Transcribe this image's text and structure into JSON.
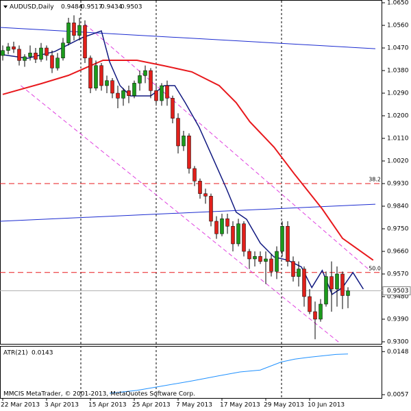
{
  "chart_data": {
    "type": "candlestick",
    "title": "AUDUSD,Daily",
    "up_color": "#1c9a1c",
    "down_color": "#e0201b",
    "ohlc": [
      [
        1.044,
        1.048,
        1.042,
        1.046
      ],
      [
        1.046,
        1.049,
        1.0445,
        1.0475
      ],
      [
        1.0475,
        1.0495,
        1.045,
        1.0465
      ],
      [
        1.0465,
        1.048,
        1.04,
        1.042
      ],
      [
        1.042,
        1.0445,
        1.0395,
        1.0435
      ],
      [
        1.0435,
        1.048,
        1.042,
        1.045
      ],
      [
        1.045,
        1.047,
        1.041,
        1.0425
      ],
      [
        1.0425,
        1.049,
        1.0415,
        1.047
      ],
      [
        1.047,
        1.048,
        1.042,
        1.044
      ],
      [
        1.044,
        1.046,
        1.037,
        1.039
      ],
      [
        1.039,
        1.045,
        1.038,
        1.043
      ],
      [
        1.043,
        1.051,
        1.042,
        1.049
      ],
      [
        1.049,
        1.059,
        1.048,
        1.057
      ],
      [
        1.057,
        1.06,
        1.05,
        1.052
      ],
      [
        1.052,
        1.059,
        1.05,
        1.056
      ],
      [
        1.056,
        1.058,
        1.041,
        1.043
      ],
      [
        1.043,
        1.044,
        1.029,
        1.031
      ],
      [
        1.031,
        1.042,
        1.03,
        1.04
      ],
      [
        1.04,
        1.041,
        1.03,
        1.032
      ],
      [
        1.032,
        1.036,
        1.029,
        1.034
      ],
      [
        1.034,
        1.035,
        1.027,
        1.029
      ],
      [
        1.029,
        1.032,
        1.023,
        1.027
      ],
      [
        1.027,
        1.031,
        1.024,
        1.03
      ],
      [
        1.03,
        1.032,
        1.025,
        1.028
      ],
      [
        1.028,
        1.034,
        1.027,
        1.033
      ],
      [
        1.033,
        1.038,
        1.03,
        1.036
      ],
      [
        1.036,
        1.04,
        1.033,
        1.038
      ],
      [
        1.038,
        1.039,
        1.027,
        1.03
      ],
      [
        1.03,
        1.033,
        1.024,
        1.026
      ],
      [
        1.026,
        1.033,
        1.024,
        1.032
      ],
      [
        1.032,
        1.034,
        1.024,
        1.027
      ],
      [
        1.027,
        1.028,
        1.017,
        1.019
      ],
      [
        1.019,
        1.021,
        1.005,
        1.008
      ],
      [
        1.008,
        1.014,
        1.006,
        1.012
      ],
      [
        1.012,
        1.013,
        0.997,
        0.999
      ],
      [
        0.999,
        1.0,
        0.992,
        0.994
      ],
      [
        0.994,
        0.995,
        0.987,
        0.989
      ],
      [
        0.989,
        0.991,
        0.985,
        0.988
      ],
      [
        0.988,
        0.989,
        0.976,
        0.978
      ],
      [
        0.978,
        0.98,
        0.971,
        0.973
      ],
      [
        0.973,
        0.981,
        0.972,
        0.979
      ],
      [
        0.979,
        0.981,
        0.973,
        0.976
      ],
      [
        0.976,
        0.978,
        0.966,
        0.969
      ],
      [
        0.969,
        0.979,
        0.968,
        0.977
      ],
      [
        0.977,
        0.978,
        0.964,
        0.966
      ],
      [
        0.966,
        0.967,
        0.959,
        0.963
      ],
      [
        0.963,
        0.966,
        0.96,
        0.964
      ],
      [
        0.964,
        0.966,
        0.961,
        0.962
      ],
      [
        0.962,
        0.966,
        0.953,
        0.963
      ],
      [
        0.963,
        0.965,
        0.956,
        0.958
      ],
      [
        0.958,
        0.968,
        0.955,
        0.966
      ],
      [
        0.966,
        0.978,
        0.964,
        0.976
      ],
      [
        0.976,
        0.978,
        0.96,
        0.962
      ],
      [
        0.962,
        0.964,
        0.954,
        0.956
      ],
      [
        0.956,
        0.962,
        0.952,
        0.959
      ],
      [
        0.959,
        0.96,
        0.944,
        0.948
      ],
      [
        0.948,
        0.951,
        0.941,
        0.942
      ],
      [
        0.942,
        0.946,
        0.931,
        0.939
      ],
      [
        0.939,
        0.947,
        0.938,
        0.945
      ],
      [
        0.945,
        0.958,
        0.944,
        0.956
      ],
      [
        0.956,
        0.962,
        0.942,
        0.951
      ],
      [
        0.951,
        0.96,
        0.944,
        0.957
      ],
      [
        0.957,
        0.958,
        0.943,
        0.9484
      ],
      [
        0.9484,
        0.9517,
        0.9434,
        0.9503
      ]
    ],
    "xlim": [
      -0.5,
      69.25
    ],
    "xticks": [
      {
        "value": 0,
        "label": "22 Mar 2013"
      },
      {
        "value": 8,
        "label": "3 Apr 2013"
      },
      {
        "value": 16,
        "label": "15 Apr 2013"
      },
      {
        "value": 24,
        "label": "25 Apr 2013"
      },
      {
        "value": 32,
        "label": "7 May 2013"
      },
      {
        "value": 40,
        "label": "17 May 2013"
      },
      {
        "value": 48,
        "label": "29 May 2013"
      },
      {
        "value": 56,
        "label": "10 Jun 2013"
      }
    ],
    "ylim": [
      0.9289,
      1.0661
    ],
    "yticks": [
      {
        "value": 1.065,
        "label": "1.0650"
      },
      {
        "value": 1.056,
        "label": "1.0560"
      },
      {
        "value": 1.047,
        "label": "1.0470"
      },
      {
        "value": 1.038,
        "label": "1.0380"
      },
      {
        "value": 1.029,
        "label": "1.0290"
      },
      {
        "value": 1.02,
        "label": "1.0200"
      },
      {
        "value": 1.011,
        "label": "1.0110"
      },
      {
        "value": 1.002,
        "label": "1.0020"
      },
      {
        "value": 0.993,
        "label": "0.9930"
      },
      {
        "value": 0.984,
        "label": "0.9840"
      },
      {
        "value": 0.975,
        "label": "0.9750"
      },
      {
        "value": 0.966,
        "label": "0.9660"
      },
      {
        "value": 0.957,
        "label": "0.9570"
      },
      {
        "value": 0.948,
        "label": "0.9480"
      },
      {
        "value": 0.939,
        "label": "0.9390"
      },
      {
        "value": 0.93,
        "label": "0.9300"
      }
    ],
    "lines": [
      {
        "color": "#1a2ad0",
        "dash": false,
        "width": 1,
        "x": [
          -0.5,
          68
        ],
        "values": [
          1.0552,
          1.0467
        ]
      },
      {
        "color": "#1a2ad0",
        "dash": false,
        "width": 1,
        "x": [
          -0.5,
          68
        ],
        "values": [
          0.978,
          0.9848
        ]
      },
      {
        "color": "#e040e0",
        "dash": true,
        "width": 1,
        "x": [
          15,
          67
        ],
        "values": [
          1.0565,
          0.9584
        ]
      },
      {
        "color": "#e040e0",
        "dash": true,
        "width": 1,
        "x": [
          3.3,
          61.4
        ],
        "values": [
          1.032,
          0.9297
        ]
      },
      {
        "color": "#e8181c",
        "dash": false,
        "width": 2,
        "x": [
          0,
          7,
          12,
          18.3,
          24.5,
          29.5,
          34.5,
          39.5,
          42.6,
          45.1,
          49.5,
          53.3,
          58.3,
          62,
          67.6
        ],
        "values": [
          1.0285,
          1.0328,
          1.0361,
          1.0421,
          1.0421,
          1.0399,
          1.0375,
          1.032,
          1.0252,
          1.0176,
          1.0075,
          0.9966,
          0.9829,
          0.9712,
          0.9625
        ]
      },
      {
        "color": "#101880",
        "dash": false,
        "width": 1.5,
        "x": [
          0,
          4.5,
          9.5,
          14.5,
          18,
          19.5,
          21.4,
          23.3,
          27,
          29.5,
          31.4,
          33.3,
          35.8,
          38.3,
          40.8,
          42.6,
          44.5,
          47,
          49.5,
          52,
          54.5,
          56.4,
          58.3,
          60.1,
          62,
          63.9,
          65.8
        ],
        "values": [
          1.0443,
          1.0429,
          1.0456,
          1.0511,
          1.0538,
          1.0415,
          1.032,
          1.0279,
          1.0279,
          1.032,
          1.032,
          1.0252,
          1.0156,
          1.0034,
          0.9911,
          0.9816,
          0.9788,
          0.9693,
          0.9638,
          0.9625,
          0.9598,
          0.9516,
          0.9584,
          0.9489,
          0.9516,
          0.9576,
          0.951
        ]
      }
    ],
    "levels": [
      {
        "label": "38.2",
        "value": 0.993,
        "color": "#e8181c"
      },
      {
        "label": "50.0",
        "value": 0.9576,
        "color": "#e8181c"
      }
    ],
    "atr": {
      "name": "ATR(21)",
      "color": "#1e90ff",
      "ylim": [
        0.005,
        0.016
      ],
      "yticks": [
        0.0148,
        0.0057
      ],
      "x": [
        19.5,
        24.5,
        29.5,
        34.5,
        39.5,
        43.3,
        47,
        50.8,
        53.3,
        55.8,
        58.3,
        60.8,
        63
      ],
      "values": [
        0.006,
        0.0066,
        0.0076,
        0.0086,
        0.0097,
        0.0105,
        0.0109,
        0.0126,
        0.0132,
        0.0136,
        0.0139,
        0.0142,
        0.0143
      ]
    },
    "footer": "MMCIS MetaTrader, © 2001-2013, MetaQuotes Software Corp."
  }
}
